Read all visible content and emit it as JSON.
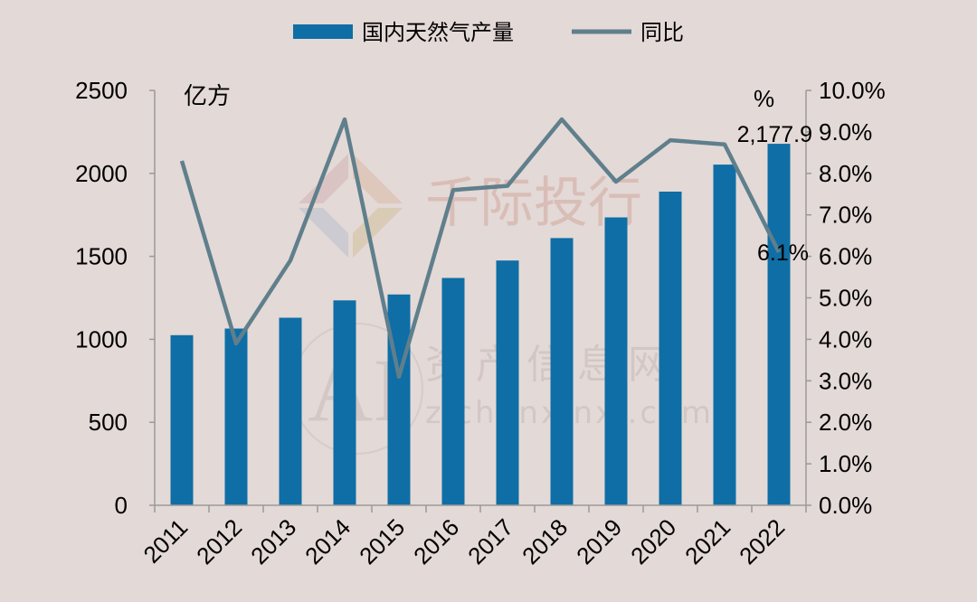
{
  "chart_data": {
    "type": "bar",
    "categories": [
      "2011",
      "2012",
      "2013",
      "2014",
      "2015",
      "2016",
      "2017",
      "2018",
      "2019",
      "2020",
      "2021",
      "2022"
    ],
    "series": [
      {
        "name": "国内天然气产量",
        "type": "bar",
        "axis": "left",
        "values": [
          1025,
          1065,
          1130,
          1235,
          1270,
          1370,
          1475,
          1610,
          1735,
          1890,
          2053,
          2177.9
        ]
      },
      {
        "name": "同比",
        "type": "line",
        "axis": "right",
        "values": [
          8.3,
          3.9,
          5.9,
          9.3,
          3.1,
          7.6,
          7.7,
          9.3,
          7.8,
          8.8,
          8.7,
          6.1
        ]
      }
    ],
    "left_axis": {
      "unit": "亿方",
      "ylim": [
        0,
        2500
      ],
      "ticks": [
        "0",
        "500",
        "1000",
        "1500",
        "2000",
        "2500"
      ]
    },
    "right_axis": {
      "unit": "%",
      "ylim": [
        0,
        10
      ],
      "ticks": [
        "0.0%",
        "1.0%",
        "2.0%",
        "3.0%",
        "4.0%",
        "5.0%",
        "6.0%",
        "7.0%",
        "8.0%",
        "9.0%",
        "10.0%"
      ]
    },
    "annotations": {
      "bar_last": "2,177.9",
      "line_last": "6.1%"
    },
    "legend_position": "top",
    "grid": false,
    "colors": {
      "bar": "#0f6ea5",
      "line": "#5f7f8c",
      "axis": "#9a9a9a",
      "background": "#e3d9d6"
    }
  },
  "watermark": {
    "logo_text": "千际投行",
    "brand_text": "资产信息网",
    "url": "zichanxinxi.com",
    "mark": "AI"
  }
}
